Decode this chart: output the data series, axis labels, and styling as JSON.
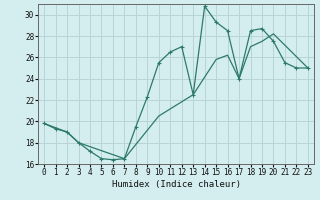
{
  "xlabel": "Humidex (Indice chaleur)",
  "bg_color": "#d4edef",
  "grid_color": "#b8d4d6",
  "line_color": "#2d7a6a",
  "xlim": [
    -0.5,
    23.5
  ],
  "ylim": [
    16,
    31
  ],
  "yticks": [
    16,
    18,
    20,
    22,
    24,
    26,
    28,
    30
  ],
  "xticks": [
    0,
    1,
    2,
    3,
    4,
    5,
    6,
    7,
    8,
    9,
    10,
    11,
    12,
    13,
    14,
    15,
    16,
    17,
    18,
    19,
    20,
    21,
    22,
    23
  ],
  "curve1_x": [
    0,
    1,
    2,
    3,
    4,
    5,
    6,
    7,
    8,
    9,
    10,
    11,
    12,
    13,
    14,
    15,
    16,
    17,
    18,
    19,
    20,
    21,
    22,
    23
  ],
  "curve1_y": [
    19.8,
    19.3,
    19.0,
    18.0,
    17.2,
    16.5,
    16.4,
    16.5,
    19.5,
    22.3,
    25.5,
    26.5,
    27.0,
    22.5,
    30.8,
    29.3,
    28.5,
    24.0,
    28.5,
    28.7,
    27.5,
    25.5,
    25.0,
    25.0
  ],
  "curve2_x": [
    0,
    2,
    3,
    7,
    10,
    13,
    15,
    16,
    17,
    18,
    19,
    20,
    23
  ],
  "curve2_y": [
    19.8,
    19.0,
    18.0,
    16.5,
    20.5,
    22.5,
    25.8,
    26.2,
    24.0,
    27.0,
    27.5,
    28.2,
    25.0
  ]
}
